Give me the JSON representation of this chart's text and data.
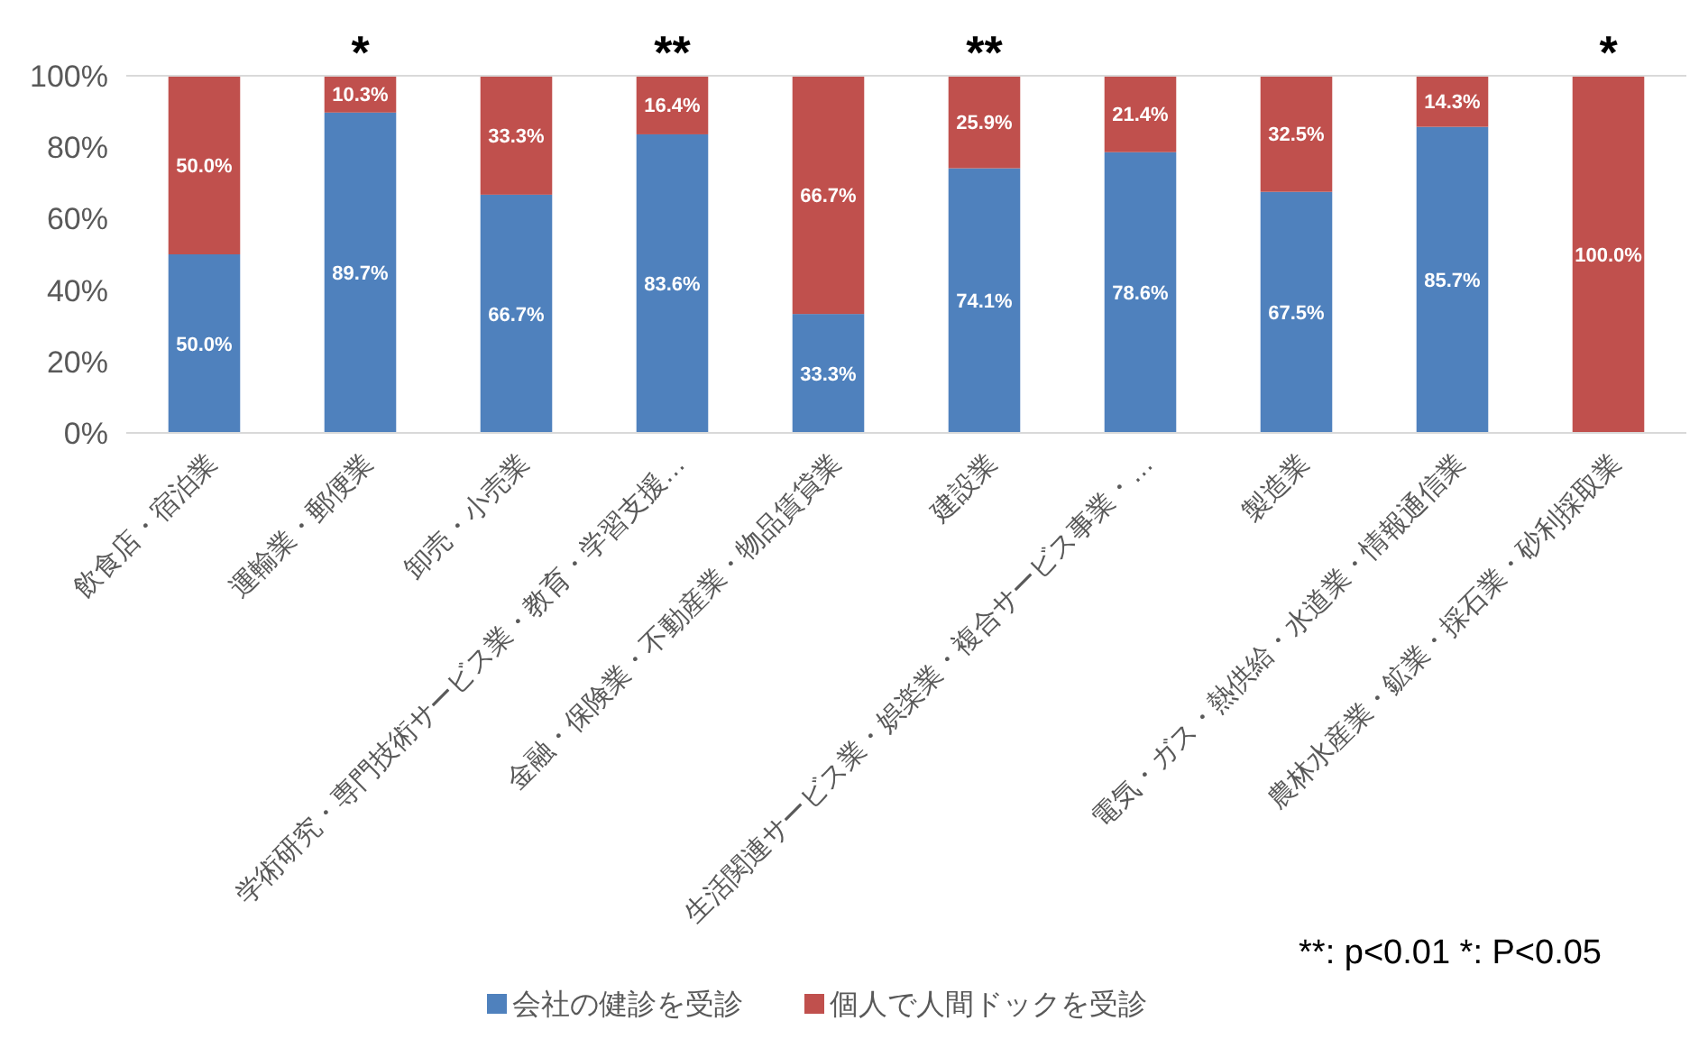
{
  "chart_data": {
    "type": "bar",
    "stacked": true,
    "categories": [
      "飲食店・宿泊業",
      "運輸業・郵便業",
      "卸売・小売業",
      "学術研究・専門技術サービス業・教育・学習支援…",
      "金融・保険業・不動産業・物品賃貸業",
      "建設業",
      "生活関連サービス業・娯楽業・複合サービス事業・…",
      "製造業",
      "電気・ガス・熱供給・水道業・情報通信業",
      "農林水産業・鉱業・採石業・砂利採取業"
    ],
    "series": [
      {
        "name": "会社の健診を受診",
        "color": "#4f81bd",
        "values": [
          50.0,
          89.7,
          66.7,
          83.6,
          33.3,
          74.1,
          78.6,
          67.5,
          85.7,
          0
        ],
        "value_labels": [
          "50.0%",
          "89.7%",
          "66.7%",
          "83.6%",
          "33.3%",
          "74.1%",
          "78.6%",
          "67.5%",
          "85.7%",
          null
        ]
      },
      {
        "name": "個人で人間ドックを受診",
        "color": "#c0504d",
        "values": [
          50.0,
          10.3,
          33.3,
          16.4,
          66.7,
          25.9,
          21.4,
          32.5,
          14.3,
          100.0
        ],
        "value_labels": [
          "50.0%",
          "10.3%",
          "33.3%",
          "16.4%",
          "66.7%",
          "25.9%",
          "21.4%",
          "32.5%",
          "14.3%",
          "100.0%"
        ]
      }
    ],
    "ylim": [
      0,
      100
    ],
    "yticks": [
      {
        "value": 0,
        "label": "0%"
      },
      {
        "value": 20,
        "label": "20%"
      },
      {
        "value": 40,
        "label": "40%"
      },
      {
        "value": 60,
        "label": "60%"
      },
      {
        "value": 80,
        "label": "80%"
      },
      {
        "value": 100,
        "label": "100%"
      }
    ],
    "annotations": [
      {
        "text": "*",
        "x": "運輸業・郵便業",
        "y": 100
      },
      {
        "text": "**",
        "x": "学術研究・専門技術サービス業・教育・学習支援…",
        "y": 100
      },
      {
        "text": "**",
        "x": "建設業",
        "y": 100
      },
      {
        "text": "*",
        "x": "農林水産業・鉱業・採石業・砂利採取業",
        "y": 100
      },
      "**: p<0.01  *: P<0.05"
    ],
    "legend": "bottom"
  }
}
